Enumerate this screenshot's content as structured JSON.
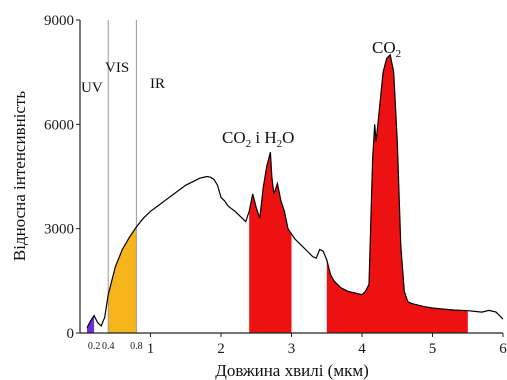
{
  "chart_data": {
    "type": "area",
    "xlabel": "Довжина хвилі (мкм)",
    "ylabel": "Відносна інтенсивність",
    "xlim": [
      0,
      6
    ],
    "ylim": [
      0,
      9000
    ],
    "y_ticks": [
      "0",
      "3000",
      "6000",
      "9000"
    ],
    "x_ticks_major": [
      "1",
      "2",
      "3",
      "4",
      "5",
      "6"
    ],
    "x_ticks_minor": [
      "0.2",
      "0.4",
      "0.8"
    ],
    "grid": false,
    "regions": [
      {
        "label": "UV",
        "x_from": 0,
        "x_to": 0.4
      },
      {
        "label": "VIS",
        "x_from": 0.4,
        "x_to": 0.8
      },
      {
        "label": "IR",
        "x_from": 0.8,
        "x_to": 6
      }
    ],
    "annotations": [
      {
        "text": "CO",
        "subscript": "2",
        "suffix": " і H",
        "subscript2": "2",
        "suffix2": "O",
        "x": 3.0,
        "y": 6000
      },
      {
        "text": "CO",
        "subscript": "2",
        "x": 4.4,
        "y": 8500
      }
    ],
    "series": [
      {
        "x": [
          0.1,
          0.15,
          0.2,
          0.25,
          0.3,
          0.35,
          0.4,
          0.5,
          0.6,
          0.7,
          0.8,
          0.9,
          1.0,
          1.1,
          1.2,
          1.3,
          1.4,
          1.5,
          1.6,
          1.7,
          1.8,
          1.85,
          1.9,
          1.95,
          2.0,
          2.05,
          2.1,
          2.2,
          2.3,
          2.35,
          2.4,
          2.45,
          2.5,
          2.55,
          2.6,
          2.65,
          2.7,
          2.72,
          2.75,
          2.8,
          2.85,
          2.9,
          2.95,
          3.0,
          3.05,
          3.1,
          3.15,
          3.2,
          3.25,
          3.3,
          3.35,
          3.4,
          3.45,
          3.5,
          3.55,
          3.6,
          3.7,
          3.8,
          3.9,
          4.0,
          4.05,
          4.1,
          4.15,
          4.18,
          4.2,
          4.25,
          4.3,
          4.35,
          4.4,
          4.45,
          4.5,
          4.55,
          4.6,
          4.65,
          4.7,
          4.8,
          4.9,
          5.0,
          5.1,
          5.2,
          5.3,
          5.4,
          5.5,
          5.6,
          5.7,
          5.8,
          5.9,
          6.0
        ],
        "y": [
          150,
          350,
          500,
          300,
          200,
          450,
          1100,
          1900,
          2400,
          2750,
          3050,
          3300,
          3500,
          3650,
          3800,
          3950,
          4100,
          4250,
          4350,
          4450,
          4500,
          4480,
          4420,
          4250,
          3900,
          3800,
          3650,
          3500,
          3300,
          3200,
          3500,
          4000,
          3600,
          3300,
          4200,
          4800,
          5200,
          4500,
          4000,
          4300,
          3800,
          3500,
          3000,
          2850,
          2700,
          2600,
          2500,
          2400,
          2300,
          2200,
          2150,
          2400,
          2350,
          2100,
          1700,
          1500,
          1300,
          1200,
          1150,
          1100,
          1200,
          1400,
          5000,
          6000,
          5500,
          6500,
          7500,
          7900,
          8000,
          7500,
          5500,
          2500,
          1200,
          900,
          850,
          800,
          750,
          720,
          700,
          680,
          660,
          650,
          640,
          620,
          600,
          650,
          600,
          400
        ]
      }
    ],
    "fills": [
      {
        "name": "UV",
        "color": "#6b2fd6",
        "x_from": 0.1,
        "x_to": 0.2
      },
      {
        "name": "VIS",
        "color": "#f5b51b",
        "x_from": 0.4,
        "x_to": 0.8
      },
      {
        "name": "CO2-H2O",
        "color": "#ee1111",
        "x_from": 2.4,
        "x_to": 3.0
      },
      {
        "name": "CO2",
        "color": "#ee1111",
        "x_from": 3.5,
        "x_to": 5.5
      }
    ],
    "colors": {
      "curve": "#000000",
      "axis": "#222222",
      "divider": "#9a9a9a"
    }
  }
}
